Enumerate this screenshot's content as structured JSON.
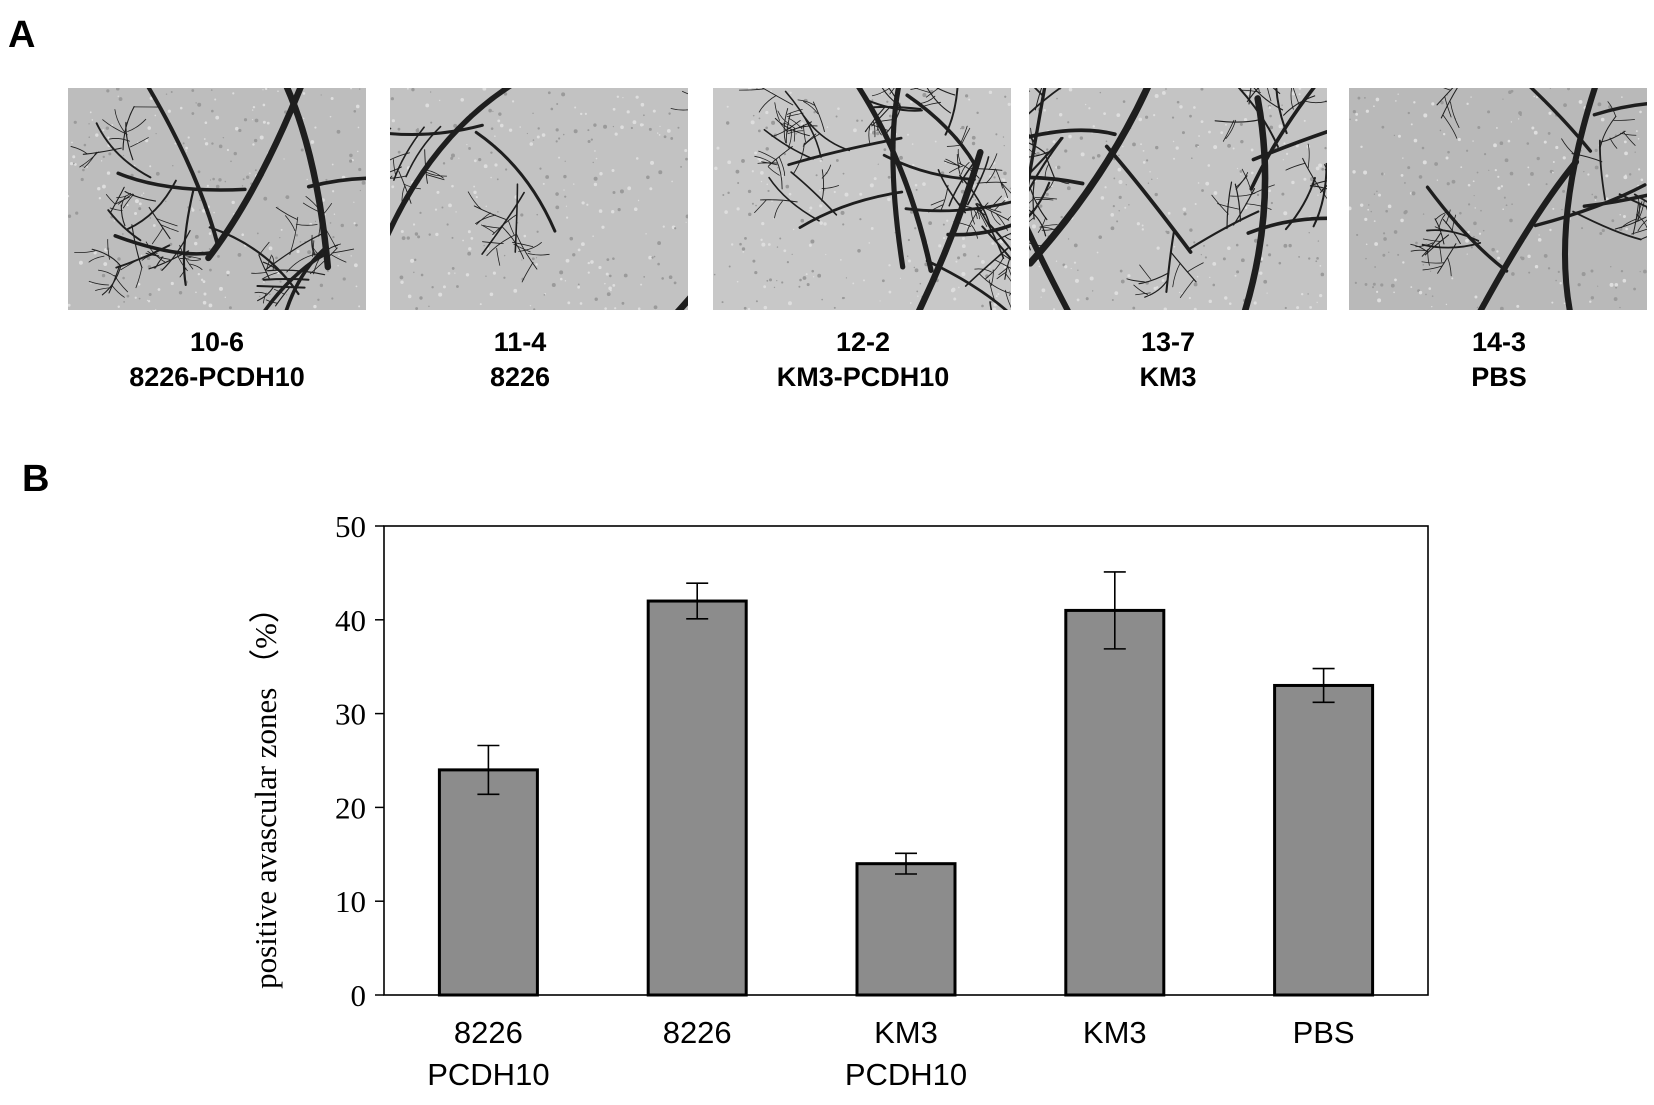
{
  "panel_a": {
    "label": "A",
    "images": [
      {
        "code": "10-6",
        "group": "8226-PCDH10"
      },
      {
        "code": "11-4",
        "group": "8226"
      },
      {
        "code": "12-2",
        "group": "KM3-PCDH10"
      },
      {
        "code": "13-7",
        "group": "KM3"
      },
      {
        "code": "14-3",
        "group": "PBS"
      }
    ]
  },
  "panel_b": {
    "label": "B"
  },
  "chart_data": {
    "type": "bar",
    "categories": [
      "8226\nPCDH10",
      "8226",
      "KM3\nPCDH10",
      "KM3",
      "PBS"
    ],
    "values": [
      24,
      42,
      14,
      41,
      33
    ],
    "errors": [
      2.6,
      1.9,
      1.1,
      4.1,
      1.8
    ],
    "ylabel": "positive avascular zones （%）",
    "ylim": [
      0,
      50
    ],
    "yticks": [
      0,
      10,
      20,
      30,
      40,
      50
    ],
    "bar_color": "#8c8c8c",
    "grid": false,
    "legend": "none"
  }
}
